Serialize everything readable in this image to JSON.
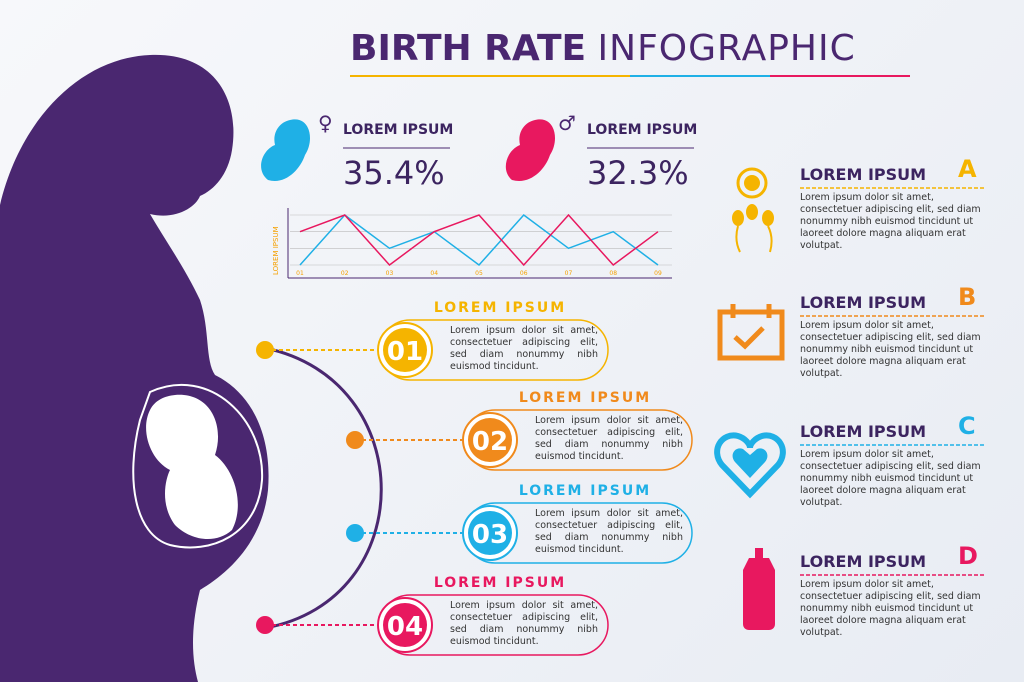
{
  "title_bold": "BIRTH RATE",
  "title_light": "INFOGRAPHIC",
  "stats": [
    {
      "label": "LOREM IPSUM",
      "value": "35.4%"
    },
    {
      "label": "LOREM IPSUM",
      "value": "32.3%"
    }
  ],
  "mini_chart": {
    "y_label": "LOREM IPSUM",
    "categories": [
      "01",
      "02",
      "03",
      "04",
      "05",
      "06",
      "07",
      "08",
      "09"
    ],
    "ylim": [
      0,
      3
    ],
    "series": [
      {
        "color": "#1fb0e6",
        "values": [
          0,
          3,
          1,
          2,
          0,
          3,
          1,
          2,
          0
        ]
      },
      {
        "color": "#e8185f",
        "values": [
          2,
          3,
          0,
          2,
          3,
          0,
          3,
          0,
          2
        ]
      }
    ]
  },
  "steps": [
    {
      "number": "01",
      "title": "LOREM IPSUM",
      "color": "#f5b400",
      "text": "Lorem ipsum dolor sit amet, consectetuer adipiscing elit, sed diam nonummy nibh euismod tincidunt."
    },
    {
      "number": "02",
      "title": "LOREM IPSUM",
      "color": "#f08a1c",
      "text": "Lorem ipsum dolor sit amet, consectetuer adipiscing elit, sed diam nonummy nibh euismod tincidunt."
    },
    {
      "number": "03",
      "title": "LOREM IPSUM",
      "color": "#1fb0e6",
      "text": "Lorem ipsum dolor sit amet, consectetuer adipiscing elit, sed diam nonummy nibh euismod tincidunt."
    },
    {
      "number": "04",
      "title": "LOREM IPSUM",
      "color": "#e8185f",
      "text": "Lorem ipsum dolor sit amet, consectetuer adipiscing elit, sed diam nonummy nibh euismod tincidunt."
    }
  ],
  "features": [
    {
      "title": "LOREM IPSUM",
      "letter": "A",
      "color": "#f5b400",
      "text": "Lorem ipsum dolor sit amet, consectetuer adipiscing elit, sed diam nonummy nibh euismod tincidunt ut laoreet dolore magna aliquam erat volutpat."
    },
    {
      "title": "LOREM IPSUM",
      "letter": "B",
      "color": "#f08a1c",
      "text": "Lorem ipsum dolor sit amet, consectetuer adipiscing elit, sed diam nonummy nibh euismod tincidunt ut laoreet dolore magna aliquam erat volutpat."
    },
    {
      "title": "LOREM IPSUM",
      "letter": "C",
      "color": "#1fb0e6",
      "text": "Lorem ipsum dolor sit amet, consectetuer adipiscing elit, sed diam nonummy nibh euismod tincidunt ut laoreet dolore magna aliquam erat volutpat."
    },
    {
      "title": "LOREM IPSUM",
      "letter": "D",
      "color": "#e8185f",
      "text": "Lorem ipsum dolor sit amet, consectetuer adipiscing elit, sed diam nonummy nibh euismod tincidunt ut laoreet dolore magna aliquam erat volutpat."
    }
  ]
}
